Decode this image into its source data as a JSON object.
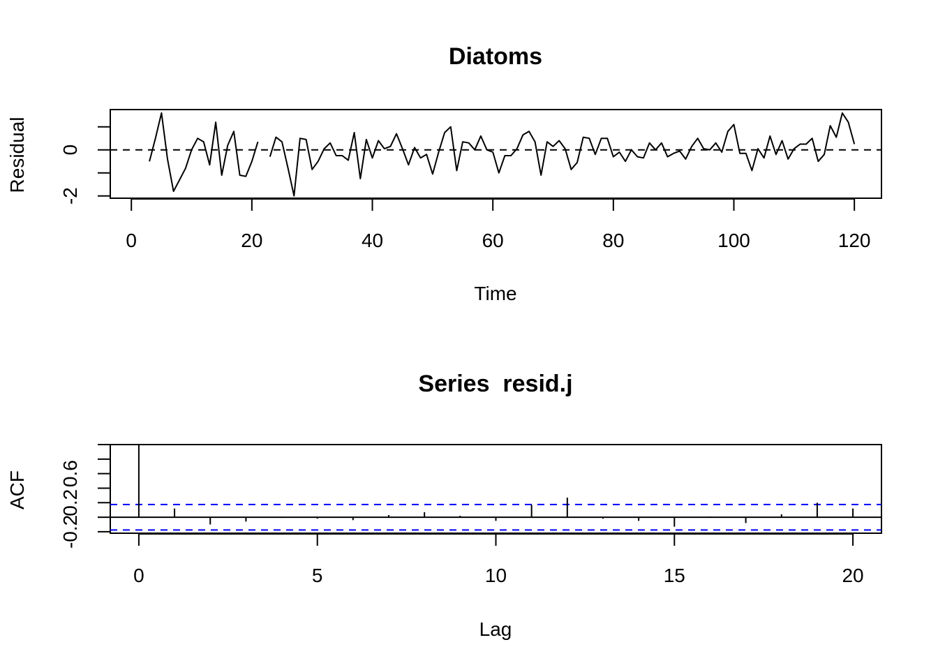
{
  "chart_data": [
    {
      "type": "line",
      "title": "Diatoms",
      "xlabel": "Time",
      "ylabel": "Residual",
      "xlim": [
        -3.5,
        124.5
      ],
      "ylim": [
        -2.1,
        1.75
      ],
      "x_ticks": [
        0,
        20,
        40,
        60,
        80,
        100,
        120
      ],
      "y_ticks": [
        -2,
        0
      ],
      "y_minor_ticks": [
        -1,
        1
      ],
      "reference_line": {
        "y": 0,
        "style": "dashed",
        "color": "#000000"
      },
      "line_color": "#000000",
      "series": [
        {
          "x": [
            3,
            4,
            5,
            6,
            7,
            8,
            9,
            10,
            11,
            12,
            13,
            14,
            15,
            16,
            17,
            18,
            19,
            20,
            21,
            null,
            23,
            24,
            25,
            26,
            27,
            28,
            29,
            30,
            31,
            32,
            33,
            34,
            35,
            36,
            37,
            38,
            39,
            40,
            41,
            42,
            43,
            44,
            45,
            46,
            47,
            48,
            49,
            50,
            51,
            52,
            53,
            54,
            55,
            56,
            57,
            58,
            59,
            60,
            61,
            62,
            63,
            64,
            65,
            66,
            67,
            68,
            69,
            70,
            71,
            72,
            73,
            74,
            75,
            76,
            77,
            78,
            79,
            80,
            81,
            82,
            83,
            84,
            85,
            86,
            87,
            88,
            89,
            90,
            91,
            92,
            93,
            94,
            95,
            96,
            97,
            98,
            99,
            100,
            101,
            102,
            103,
            104,
            105,
            106,
            107,
            108,
            109,
            110,
            111,
            112,
            113,
            114,
            115,
            116,
            117,
            118,
            119,
            120
          ],
          "y": [
            -0.5,
            0.5,
            1.6,
            -0.4,
            -1.8,
            -1.3,
            -0.8,
            0.0,
            0.5,
            0.35,
            -0.65,
            1.2,
            -1.1,
            0.2,
            0.8,
            -1.1,
            -1.15,
            -0.5,
            0.35,
            null,
            -0.3,
            0.55,
            0.35,
            -0.8,
            -2.0,
            0.5,
            0.45,
            -0.85,
            -0.5,
            0.05,
            0.3,
            -0.25,
            -0.25,
            -0.45,
            0.75,
            -1.25,
            0.45,
            -0.35,
            0.4,
            0.05,
            0.15,
            0.7,
            0.05,
            -0.65,
            0.1,
            -0.35,
            -0.2,
            -1.05,
            -0.1,
            0.75,
            1.0,
            -0.9,
            0.35,
            0.3,
            0.0,
            0.6,
            0.0,
            -0.1,
            -1.0,
            -0.25,
            -0.25,
            0.05,
            0.65,
            0.8,
            0.35,
            -1.1,
            0.35,
            0.15,
            0.4,
            0.05,
            -0.85,
            -0.55,
            0.55,
            0.5,
            -0.2,
            0.5,
            0.5,
            -0.3,
            -0.1,
            -0.5,
            0.0,
            -0.3,
            -0.35,
            0.3,
            0.0,
            0.3,
            -0.3,
            -0.15,
            -0.05,
            -0.4,
            0.15,
            0.5,
            0.05,
            0.0,
            0.3,
            -0.1,
            0.8,
            1.1,
            -0.15,
            -0.15,
            -0.9,
            0.05,
            -0.35,
            0.6,
            -0.2,
            0.4,
            -0.4,
            0.05,
            0.25,
            0.25,
            0.5,
            -0.5,
            -0.2,
            1.05,
            0.55,
            1.6,
            1.2,
            0.25
          ]
        }
      ]
    },
    {
      "type": "bar",
      "title": "Series  resid.j",
      "xlabel": "Lag",
      "ylabel": "ACF",
      "xlim": [
        -0.8,
        20.8
      ],
      "ylim": [
        -0.22,
        1.0
      ],
      "x_ticks": [
        0,
        5,
        10,
        15,
        20
      ],
      "y_ticks": [
        -0.2,
        0.2,
        0.6
      ],
      "y_minor_ticks": [
        0.0,
        0.4,
        0.8,
        1.0
      ],
      "zero_line": {
        "y": 0,
        "color": "#000000"
      },
      "confidence_bounds": {
        "upper": 0.175,
        "lower": -0.175,
        "style": "dashed",
        "color": "#0000ff"
      },
      "bar_color": "#000000",
      "series": [
        {
          "x": [
            0,
            1,
            2,
            3,
            4,
            5,
            6,
            7,
            8,
            9,
            10,
            11,
            12,
            13,
            14,
            15,
            16,
            17,
            18,
            19,
            20
          ],
          "y": [
            1.0,
            0.12,
            -0.1,
            -0.06,
            -0.01,
            -0.02,
            -0.04,
            0.03,
            0.07,
            0.02,
            -0.05,
            0.17,
            0.27,
            -0.02,
            -0.05,
            -0.13,
            0.01,
            -0.08,
            0.04,
            0.2,
            0.12
          ]
        }
      ]
    }
  ]
}
